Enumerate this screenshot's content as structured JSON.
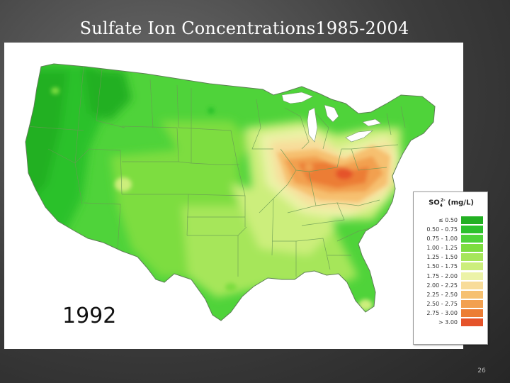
{
  "slide": {
    "title": "Sulfate Ion Concentrations1985-2004",
    "year": "1992",
    "page_number": "26"
  },
  "map": {
    "region": "United States",
    "legend": {
      "title_main": "SO",
      "title_sub": "4",
      "title_sup": "2-",
      "title_unit": "(mg/L)",
      "bins": [
        {
          "label": "≤ 0.50",
          "color": "#22b022"
        },
        {
          "label": "0.50 - 0.75",
          "color": "#2cc12c"
        },
        {
          "label": "0.75 - 1.00",
          "color": "#4fd33a"
        },
        {
          "label": "1.00 - 1.25",
          "color": "#7ddd3f"
        },
        {
          "label": "1.25 - 1.50",
          "color": "#a6e65a"
        },
        {
          "label": "1.50 - 1.75",
          "color": "#ccee7c"
        },
        {
          "label": "1.75 - 2.00",
          "color": "#ecf3a8"
        },
        {
          "label": "2.00 - 2.25",
          "color": "#f8dc9a"
        },
        {
          "label": "2.25 - 2.50",
          "color": "#f6c070"
        },
        {
          "label": "2.50 - 2.75",
          "color": "#f2a050"
        },
        {
          "label": "2.75 - 3.00",
          "color": "#ec7d34"
        },
        {
          "label": "> 3.00",
          "color": "#e5532a"
        }
      ]
    }
  }
}
